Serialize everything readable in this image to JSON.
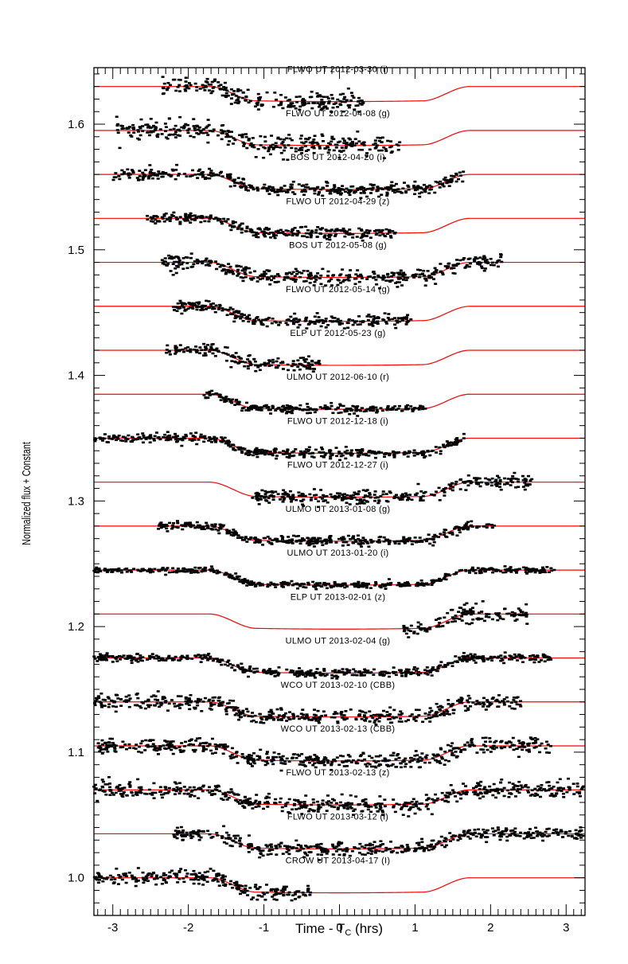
{
  "chart_data": {
    "type": "scatter",
    "xlabel": "Time - T",
    "xlabel_sub": "C",
    "xlabel_unit": " (hrs)",
    "ylabel": "Normalized flux + Constant",
    "xlim": [
      -3.25,
      3.25
    ],
    "ylim": [
      0.97,
      1.645
    ],
    "x_ticks": [
      -3,
      -2,
      -1,
      0,
      1,
      2,
      3
    ],
    "y_ticks": [
      1.0,
      1.1,
      1.2,
      1.3,
      1.4,
      1.5,
      1.6
    ],
    "y_tick_labels": [
      "1.0",
      "1.1",
      "1.2",
      "1.3",
      "1.4",
      "1.5",
      "1.6"
    ],
    "model_color": "#ff0000",
    "data_color": "#000000",
    "transit": {
      "t14_half": 1.72,
      "t23_half": 1.1,
      "depth": 0.012
    },
    "series": [
      {
        "label": "FLWO UT 2012-03-30 (i)",
        "baseline": 1.63,
        "x_range": [
          -2.35,
          0.32
        ]
      },
      {
        "label": "FLWO UT 2012-04-08 (g)",
        "baseline": 1.595,
        "x_range": [
          -2.95,
          0.8
        ]
      },
      {
        "label": "BOS UT 2012-04-20 (i)",
        "baseline": 1.56,
        "x_range": [
          -3.0,
          1.65
        ]
      },
      {
        "label": "FLWO UT 2012-04-29 (z)",
        "baseline": 1.525,
        "x_range": [
          -2.55,
          0.75
        ]
      },
      {
        "label": "BOS UT 2012-05-08 (g)",
        "baseline": 1.49,
        "x_range": [
          -2.35,
          2.15
        ]
      },
      {
        "label": "FLWO UT 2012-05-14 (g)",
        "baseline": 1.455,
        "x_range": [
          -2.2,
          0.95
        ]
      },
      {
        "label": "ELP UT 2012-05-23 (g)",
        "baseline": 1.42,
        "x_range": [
          -2.3,
          -0.25
        ]
      },
      {
        "label": "ULMO UT 2012-06-10 (r)",
        "baseline": 1.385,
        "x_range": [
          -1.8,
          1.15
        ]
      },
      {
        "label": "FLWO UT 2012-12-18 (i)",
        "baseline": 1.35,
        "x_range": [
          -3.25,
          1.65
        ]
      },
      {
        "label": "FLWO UT 2012-12-27 (i)",
        "baseline": 1.315,
        "x_range": [
          -1.15,
          2.55
        ]
      },
      {
        "label": "ULMO UT 2013-01-08 (g)",
        "baseline": 1.28,
        "x_range": [
          -2.4,
          2.05
        ]
      },
      {
        "label": "ULMO UT 2013-01-20 (i)",
        "baseline": 1.245,
        "x_range": [
          -3.25,
          2.85
        ]
      },
      {
        "label": "ELP UT 2013-02-01 (z)",
        "baseline": 1.21,
        "x_range": [
          0.85,
          2.5
        ]
      },
      {
        "label": "ULMO UT 2013-02-04 (g)",
        "baseline": 1.175,
        "x_range": [
          -3.25,
          2.8
        ]
      },
      {
        "label": "WCO UT 2013-02-10 (CBB)",
        "baseline": 1.14,
        "x_range": [
          -3.25,
          2.4
        ]
      },
      {
        "label": "WCO UT 2013-02-13 (CBB)",
        "baseline": 1.105,
        "x_range": [
          -3.25,
          2.8
        ]
      },
      {
        "label": "FLWO UT 2013-02-13 (z)",
        "baseline": 1.07,
        "x_range": [
          -3.25,
          3.25
        ]
      },
      {
        "label": "FLWO UT 2013-03-12 (i)",
        "baseline": 1.035,
        "x_range": [
          -2.2,
          3.25
        ]
      },
      {
        "label": "CROW UT 2013-04-17 (I)",
        "baseline": 1.0,
        "x_range": [
          -3.25,
          -0.35
        ]
      }
    ]
  }
}
